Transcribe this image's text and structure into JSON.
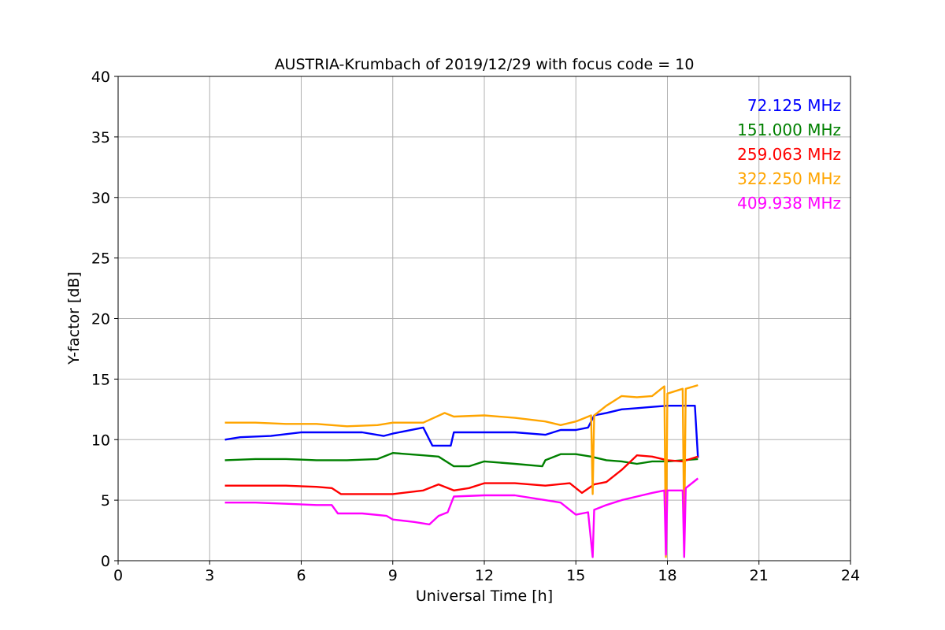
{
  "chart_data": {
    "type": "line",
    "title": "AUSTRIA-Krumbach of 2019/12/29 with focus code = 10",
    "xlabel": "Universal Time [h]",
    "ylabel": "Y-factor [dB]",
    "xlim": [
      0,
      24
    ],
    "ylim": [
      0,
      40
    ],
    "xticks": [
      "0",
      "3",
      "6",
      "9",
      "12",
      "15",
      "18",
      "21",
      "24"
    ],
    "yticks": [
      "0",
      "5",
      "10",
      "15",
      "20",
      "25",
      "30",
      "35",
      "40"
    ],
    "grid": true,
    "legend_position": "top-right",
    "series": [
      {
        "name": "72.125 MHz",
        "color": "#0000ff",
        "x": [
          3.5,
          4.0,
          5.0,
          6.0,
          7.0,
          8.0,
          8.7,
          9.0,
          10.0,
          10.3,
          10.9,
          11.0,
          12.0,
          13.0,
          14.0,
          14.5,
          15.0,
          15.4,
          15.6,
          16.0,
          16.5,
          17.0,
          17.5,
          18.0,
          18.5,
          18.9,
          19.0
        ],
        "y": [
          10.0,
          10.2,
          10.3,
          10.6,
          10.6,
          10.6,
          10.3,
          10.5,
          11.0,
          9.5,
          9.5,
          10.6,
          10.6,
          10.6,
          10.4,
          10.8,
          10.8,
          11.0,
          12.0,
          12.2,
          12.5,
          12.6,
          12.7,
          12.8,
          12.8,
          12.8,
          8.5
        ]
      },
      {
        "name": "151.000 MHz",
        "color": "#008000",
        "x": [
          3.5,
          4.5,
          5.5,
          6.5,
          7.5,
          8.5,
          9.0,
          10.0,
          10.5,
          11.0,
          11.5,
          12.0,
          13.0,
          13.9,
          14.0,
          14.5,
          15.0,
          15.5,
          16.0,
          16.5,
          17.0,
          17.5,
          18.0,
          18.5,
          19.0
        ],
        "y": [
          8.3,
          8.4,
          8.4,
          8.3,
          8.3,
          8.4,
          8.9,
          8.7,
          8.6,
          7.8,
          7.8,
          8.2,
          8.0,
          7.8,
          8.3,
          8.8,
          8.8,
          8.6,
          8.3,
          8.2,
          8.0,
          8.2,
          8.2,
          8.3,
          8.4
        ]
      },
      {
        "name": "259.063 MHz",
        "color": "#ff0000",
        "x": [
          3.5,
          4.5,
          5.5,
          6.5,
          7.0,
          7.3,
          8.0,
          9.0,
          10.0,
          10.5,
          11.0,
          11.5,
          12.0,
          13.0,
          14.0,
          14.8,
          15.2,
          15.6,
          16.0,
          16.5,
          17.0,
          17.5,
          18.0,
          18.5,
          19.0
        ],
        "y": [
          6.2,
          6.2,
          6.2,
          6.1,
          6.0,
          5.5,
          5.5,
          5.5,
          5.8,
          6.3,
          5.8,
          6.0,
          6.4,
          6.4,
          6.2,
          6.4,
          5.6,
          6.3,
          6.5,
          7.5,
          8.7,
          8.6,
          8.3,
          8.2,
          8.6
        ]
      },
      {
        "name": "322.250 MHz",
        "color": "#ffa500",
        "x": [
          3.5,
          4.5,
          5.5,
          6.5,
          7.5,
          8.5,
          9.0,
          10.0,
          10.7,
          11.0,
          12.0,
          13.0,
          14.0,
          14.5,
          15.0,
          15.5,
          15.55,
          15.6,
          16.0,
          16.5,
          17.0,
          17.5,
          17.9,
          17.95,
          18.0,
          18.5,
          18.55,
          18.6,
          19.0
        ],
        "y": [
          11.4,
          11.4,
          11.3,
          11.3,
          11.1,
          11.2,
          11.4,
          11.4,
          12.2,
          11.9,
          12.0,
          11.8,
          11.5,
          11.2,
          11.5,
          12.0,
          5.5,
          12.0,
          12.8,
          13.6,
          13.5,
          13.6,
          14.4,
          0.3,
          13.8,
          14.2,
          2.0,
          14.2,
          14.5
        ]
      },
      {
        "name": "409.938 MHz",
        "color": "#ff00ff",
        "x": [
          3.5,
          4.5,
          5.5,
          6.5,
          7.0,
          7.2,
          8.0,
          8.8,
          9.0,
          9.7,
          10.2,
          10.5,
          10.8,
          11.0,
          12.0,
          13.0,
          14.0,
          14.5,
          14.8,
          15.0,
          15.4,
          15.55,
          15.6,
          16.0,
          16.5,
          17.0,
          17.5,
          17.9,
          17.95,
          18.0,
          18.5,
          18.55,
          18.6,
          19.0
        ],
        "y": [
          4.8,
          4.8,
          4.7,
          4.6,
          4.6,
          3.9,
          3.9,
          3.7,
          3.4,
          3.2,
          3.0,
          3.7,
          4.0,
          5.3,
          5.4,
          5.4,
          5.0,
          4.8,
          4.2,
          3.8,
          4.0,
          0.3,
          4.2,
          4.6,
          5.0,
          5.3,
          5.6,
          5.8,
          0.5,
          5.8,
          5.8,
          0.3,
          6.0,
          6.8
        ]
      }
    ]
  }
}
